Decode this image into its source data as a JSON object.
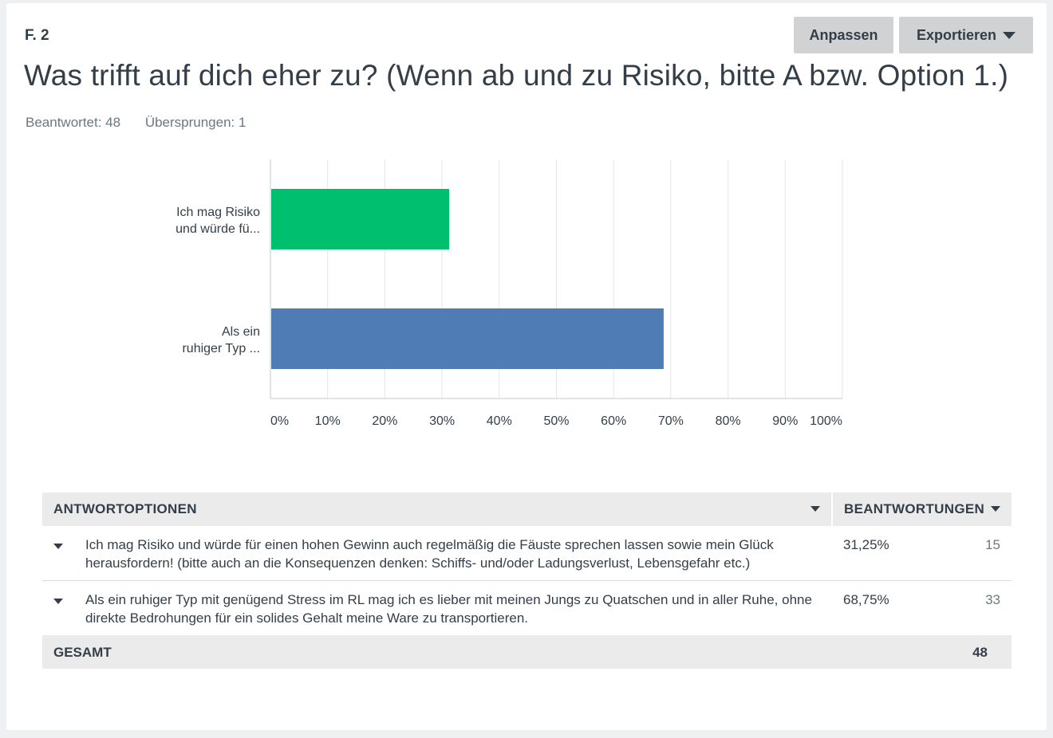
{
  "question": {
    "number": "F. 2",
    "title": "Was trifft auf dich eher zu? (Wenn ab und zu Risiko, bitte A bzw. Option 1.)",
    "answered": "Beantwortet: 48",
    "skipped": "Übersprungen: 1"
  },
  "toolbar": {
    "adjust_label": "Anpassen",
    "export_label": "Exportieren"
  },
  "chart_data": {
    "type": "bar",
    "orientation": "horizontal",
    "categories": [
      [
        "Ich mag Risiko",
        "und würde fü..."
      ],
      [
        "Als ein",
        "ruhiger Typ ..."
      ]
    ],
    "values": [
      31.25,
      68.75
    ],
    "colors": [
      "#00bf6f",
      "#507cb6"
    ],
    "xlim": [
      0,
      100
    ],
    "xticks": [
      0,
      10,
      20,
      30,
      40,
      50,
      60,
      70,
      80,
      90,
      100
    ],
    "xtick_labels": [
      "0%",
      "10%",
      "20%",
      "30%",
      "40%",
      "50%",
      "60%",
      "70%",
      "80%",
      "90%",
      "100%"
    ],
    "grid": true
  },
  "table": {
    "headers": {
      "options": "ANTWORTOPTIONEN",
      "responses": "BEANTWORTUNGEN"
    },
    "rows": [
      {
        "text": "Ich mag Risiko und würde für einen hohen Gewinn auch regelmäßig die Fäuste sprechen lassen sowie mein Glück herausfordern! (bitte auch an die Konsequenzen denken: Schiffs- und/oder Ladungsverlust, Lebensgefahr etc.)",
        "percent": "31,25%",
        "count": "15"
      },
      {
        "text": "Als ein ruhiger Typ mit genügend Stress im RL mag ich es lieber mit meinen Jungs zu Quatschen und in aller Ruhe, ohne direkte Bedrohungen für ein solides Gehalt meine Ware zu transportieren.",
        "percent": "68,75%",
        "count": "33"
      }
    ],
    "total": {
      "label": "GESAMT",
      "count": "48"
    }
  }
}
